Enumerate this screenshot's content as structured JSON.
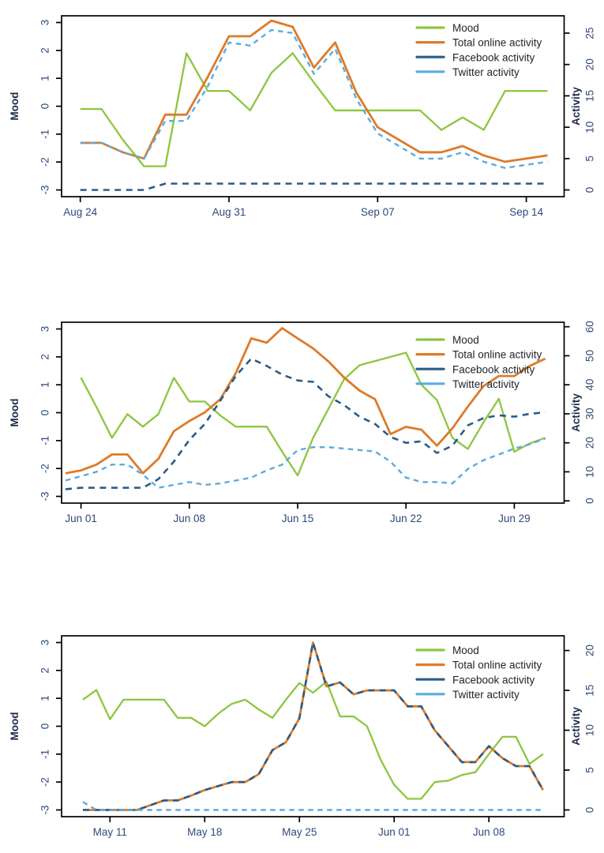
{
  "figure": {
    "background": "#ffffff",
    "left_axis_title": "Mood",
    "right_axis_title": "Activity"
  },
  "colors": {
    "mood": "#8DC63F",
    "total": "#DD7B28",
    "facebook": "#2A5C8A",
    "twitter": "#5AACDF",
    "axis": "#000000",
    "tick_text": "#2E4A7A",
    "title_text": "#1B2A4A",
    "legend_text": "#20242C"
  },
  "legend": {
    "items": [
      {
        "label": "Mood",
        "color_key": "mood",
        "style": "solid"
      },
      {
        "label": "Total online activity",
        "color_key": "total",
        "style": "solid"
      },
      {
        "label": "Facebook activity",
        "color_key": "facebook",
        "style": "solid"
      },
      {
        "label": "Twitter activity",
        "color_key": "twitter",
        "style": "solid"
      }
    ]
  },
  "chart_data": [
    {
      "type": "line",
      "title": "",
      "xlabel": "",
      "ylabel_left": "Mood",
      "ylabel_right": "Activity",
      "mood_ylim": [
        -3,
        3
      ],
      "mood_tick_labels": [
        "3",
        "2",
        "1",
        "0",
        "-1",
        "-2",
        "-3"
      ],
      "mood_ticks": [
        3,
        2,
        1,
        0,
        -1,
        -2,
        -3
      ],
      "activity_tick_labels": [
        "25",
        "20",
        "15",
        "10",
        "5",
        "0"
      ],
      "activity_ticks": [
        25,
        20,
        15,
        10,
        5,
        0
      ],
      "activity_to_mood": {
        "scale": 0.2248,
        "offset": -3.0
      },
      "x_tick_labels": [
        "Aug 24",
        "Aug 31",
        "Sep 07",
        "Sep 14"
      ],
      "x_tick_indices": [
        0,
        7,
        14,
        21
      ],
      "n_points": 23,
      "series": [
        {
          "name": "Mood",
          "axis": "mood",
          "color_key": "mood",
          "line_style": "solid",
          "values": [
            -0.1,
            -0.1,
            -1.2,
            -2.15,
            -2.15,
            1.9,
            0.55,
            0.55,
            -0.15,
            1.2,
            1.9,
            0.85,
            -0.15,
            -0.15,
            -0.15,
            -0.15,
            -0.15,
            -0.85,
            -0.4,
            -0.85,
            0.55,
            0.55,
            0.55
          ]
        },
        {
          "name": "Total online activity",
          "axis": "activity",
          "color_key": "total",
          "line_style": "solid",
          "values": [
            7.5,
            7.5,
            6,
            5,
            12,
            12,
            18,
            24.5,
            24.5,
            27,
            26,
            19.5,
            23.5,
            15.5,
            10,
            8,
            6,
            6,
            7,
            5.5,
            4.5,
            5,
            5.5
          ]
        },
        {
          "name": "Facebook activity",
          "axis": "activity",
          "color_key": "facebook",
          "line_style": "dashed",
          "values": [
            0,
            0,
            0,
            0,
            1,
            1,
            1,
            1,
            1,
            1,
            1,
            1,
            1,
            1,
            1,
            1,
            1,
            1,
            1,
            1,
            1,
            1,
            1
          ]
        },
        {
          "name": "Twitter activity",
          "axis": "activity",
          "color_key": "twitter",
          "line_style": "dashed",
          "values": [
            7.5,
            7.5,
            6,
            5,
            11,
            11,
            16.5,
            23.5,
            23,
            25.5,
            25,
            18.5,
            22.5,
            14.5,
            9,
            7,
            5,
            5,
            6,
            4.5,
            3.5,
            4,
            4.5
          ]
        }
      ]
    },
    {
      "type": "line",
      "title": "",
      "xlabel": "",
      "ylabel_left": "Mood",
      "ylabel_right": "Activity",
      "mood_ylim": [
        -3,
        3
      ],
      "mood_tick_labels": [
        "3",
        "2",
        "1",
        "0",
        "-1",
        "-2",
        "-3"
      ],
      "mood_ticks": [
        3,
        2,
        1,
        0,
        -1,
        -2,
        -3
      ],
      "activity_tick_labels": [
        "60",
        "50",
        "40",
        "30",
        "20",
        "10",
        "0"
      ],
      "activity_ticks": [
        60,
        50,
        40,
        30,
        20,
        10,
        0
      ],
      "activity_to_mood": {
        "scale": 0.104,
        "offset": -3.16
      },
      "x_tick_labels": [
        "Jun 01",
        "Jun 08",
        "Jun 15",
        "Jun 22",
        "Jun 29"
      ],
      "x_tick_indices": [
        1,
        8,
        15,
        22,
        29
      ],
      "n_points": 32,
      "series": [
        {
          "name": "Mood",
          "axis": "mood",
          "color_key": "mood",
          "line_style": "solid",
          "values": [
            null,
            1.25,
            0.2,
            -0.9,
            -0.05,
            -0.5,
            -0.05,
            1.25,
            0.4,
            0.4,
            -0.1,
            -0.5,
            -0.5,
            -0.5,
            -1.4,
            -2.25,
            -0.9,
            0.15,
            1.2,
            1.7,
            1.85,
            2.0,
            2.15,
            1.0,
            0.45,
            -0.9,
            -1.3,
            -0.35,
            0.5,
            -1.4,
            -1.1,
            -0.9
          ]
        },
        {
          "name": "Total online activity",
          "axis": "activity",
          "color_key": "total",
          "line_style": "solid",
          "values": [
            9.5,
            10.5,
            12.5,
            16,
            16,
            9.5,
            14.5,
            24,
            27.5,
            30.5,
            35,
            44,
            56,
            54.5,
            59.5,
            56,
            52.5,
            48,
            42.5,
            38,
            35,
            23,
            25.5,
            24.5,
            19,
            25,
            32.5,
            39.5,
            43,
            43,
            46.5,
            49
          ]
        },
        {
          "name": "Facebook activity",
          "axis": "activity",
          "color_key": "facebook",
          "line_style": "dashed",
          "values": [
            4,
            4.5,
            4.5,
            4.5,
            4.5,
            4.5,
            7.5,
            13.5,
            21,
            26.5,
            34.5,
            43,
            49,
            46.5,
            43.5,
            41.5,
            41,
            36,
            33,
            29,
            26.5,
            22,
            20,
            20.5,
            16.5,
            19,
            26,
            28.5,
            29.5,
            29,
            30,
            30.5
          ]
        },
        {
          "name": "Twitter activity",
          "axis": "activity",
          "color_key": "twitter",
          "line_style": "dashed",
          "values": [
            7,
            8.5,
            10,
            12.5,
            12.5,
            9,
            4.5,
            5.5,
            6.5,
            5.5,
            6,
            7,
            8,
            10.5,
            12.5,
            17.5,
            18.5,
            18.5,
            18,
            17.5,
            17,
            13.5,
            8,
            6.5,
            6.5,
            6,
            11,
            14,
            16,
            18,
            19.5,
            21.5
          ]
        }
      ]
    },
    {
      "type": "line",
      "title": "",
      "xlabel": "",
      "ylabel_left": "Mood",
      "ylabel_right": "Activity",
      "mood_ylim": [
        -3,
        3
      ],
      "mood_tick_labels": [
        "3",
        "2",
        "1",
        "0",
        "-1",
        "-2",
        "-3"
      ],
      "mood_ticks": [
        3,
        2,
        1,
        0,
        -1,
        -2,
        -3
      ],
      "activity_tick_labels": [
        "20",
        "15",
        "10",
        "5",
        "0"
      ],
      "activity_ticks": [
        20,
        15,
        10,
        5,
        0
      ],
      "activity_to_mood": {
        "scale": 0.2857,
        "offset": -3.0
      },
      "x_tick_labels": [
        "May 11",
        "May 18",
        "May 25",
        "Jun 01",
        "Jun 08"
      ],
      "x_tick_indices": [
        2,
        9,
        16,
        23,
        30
      ],
      "n_points": 35,
      "series": [
        {
          "name": "Mood",
          "axis": "mood",
          "color_key": "mood",
          "line_style": "solid",
          "values": [
            0.95,
            1.3,
            0.25,
            0.95,
            0.95,
            0.95,
            0.95,
            0.3,
            0.3,
            0.0,
            0.45,
            0.8,
            0.95,
            0.6,
            0.3,
            0.95,
            1.55,
            1.2,
            1.6,
            0.35,
            0.35,
            0.0,
            -1.2,
            -2.1,
            -2.6,
            -2.6,
            -2.0,
            -1.95,
            -1.75,
            -1.65,
            -1.0,
            -0.38,
            -0.38,
            -1.35,
            -1.0
          ]
        },
        {
          "name": "Total online activity",
          "axis": "activity",
          "color_key": "total",
          "line_style": "solid",
          "values": [
            0,
            0,
            0,
            0,
            0,
            0.6,
            1.2,
            1.2,
            1.8,
            2.5,
            3,
            3.5,
            3.5,
            4.5,
            7.5,
            8.5,
            11.5,
            21,
            15.5,
            16,
            14.5,
            15,
            15,
            15,
            13,
            13,
            10,
            8,
            6,
            6,
            8,
            6.5,
            5.5,
            5.5,
            2.5
          ]
        },
        {
          "name": "Facebook activity",
          "axis": "activity",
          "color_key": "facebook",
          "line_style": "dashed",
          "values": [
            0,
            0,
            0,
            0,
            0,
            0.6,
            1.2,
            1.2,
            1.8,
            2.5,
            3,
            3.5,
            3.5,
            4.5,
            7.5,
            8.5,
            11.5,
            21,
            15.5,
            16,
            14.5,
            15,
            15,
            15,
            13,
            13,
            10,
            8,
            6,
            6,
            8,
            6.5,
            5.5,
            5.5,
            2.5
          ]
        },
        {
          "name": "Twitter activity",
          "axis": "activity",
          "color_key": "twitter",
          "line_style": "dashed",
          "values": [
            1,
            0,
            0,
            0,
            0,
            0,
            0,
            0,
            0,
            0,
            0,
            0,
            0,
            0,
            0,
            0,
            0,
            0,
            0,
            0,
            0,
            0,
            0,
            0,
            0,
            0,
            0,
            0,
            0,
            0,
            0,
            0,
            0,
            0,
            0
          ]
        }
      ]
    }
  ]
}
